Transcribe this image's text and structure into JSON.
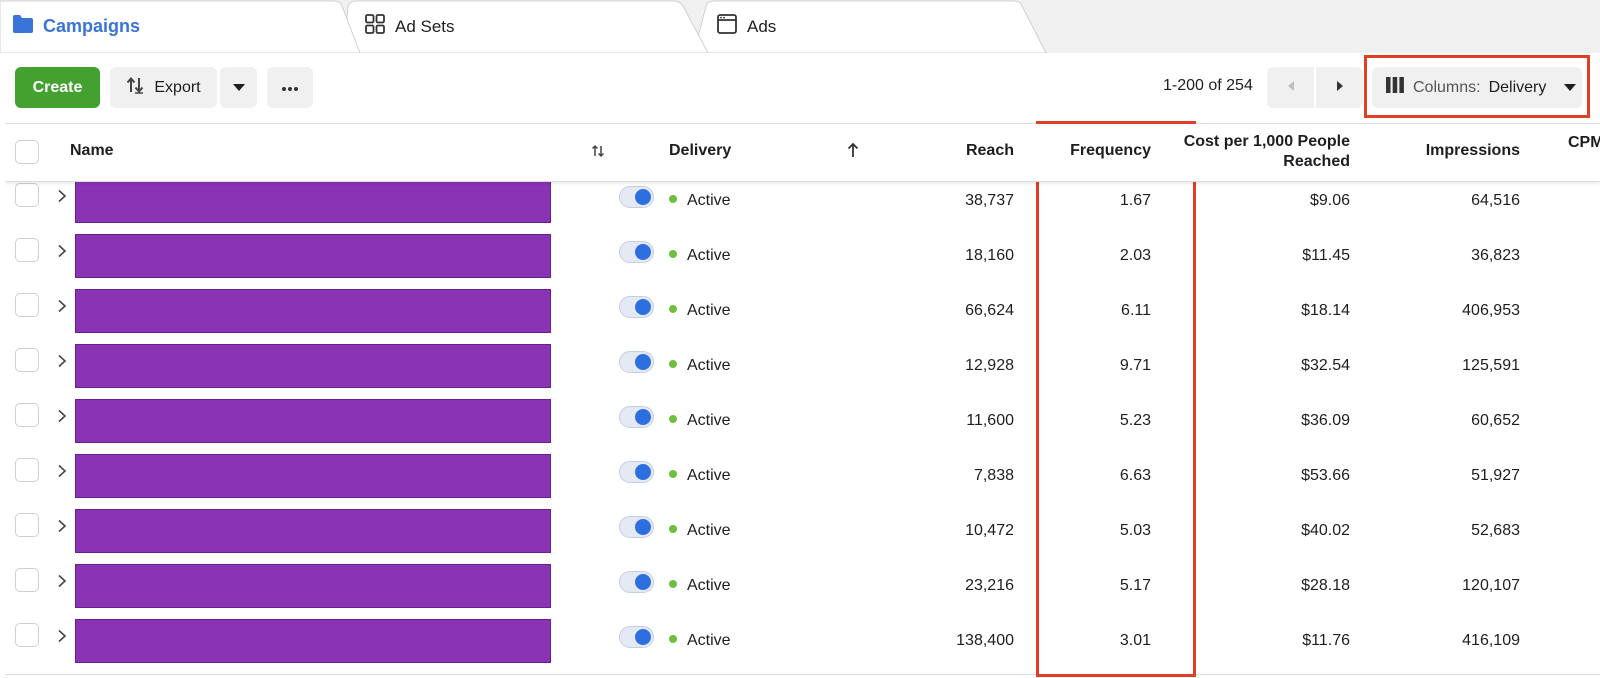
{
  "tabs": {
    "campaigns": "Campaigns",
    "adsets": "Ad Sets",
    "ads": "Ads"
  },
  "toolbar": {
    "create": "Create",
    "export": "Export",
    "pager": "1-200 of 254",
    "columns_label": "Columns:",
    "columns_value": "Delivery"
  },
  "columns": {
    "name": "Name",
    "delivery": "Delivery",
    "reach": "Reach",
    "frequency": "Frequency",
    "cost_per_1000": "Cost per 1,000 People Reached",
    "impressions": "Impressions",
    "cpm": "CPM"
  },
  "rows": [
    {
      "status": "Active",
      "reach": "38,737",
      "frequency": "1.67",
      "cost": "$9.06",
      "impressions": "64,516"
    },
    {
      "status": "Active",
      "reach": "18,160",
      "frequency": "2.03",
      "cost": "$11.45",
      "impressions": "36,823"
    },
    {
      "status": "Active",
      "reach": "66,624",
      "frequency": "6.11",
      "cost": "$18.14",
      "impressions": "406,953"
    },
    {
      "status": "Active",
      "reach": "12,928",
      "frequency": "9.71",
      "cost": "$32.54",
      "impressions": "125,591"
    },
    {
      "status": "Active",
      "reach": "11,600",
      "frequency": "5.23",
      "cost": "$36.09",
      "impressions": "60,652"
    },
    {
      "status": "Active",
      "reach": "7,838",
      "frequency": "6.63",
      "cost": "$53.66",
      "impressions": "51,927"
    },
    {
      "status": "Active",
      "reach": "10,472",
      "frequency": "5.03",
      "cost": "$40.02",
      "impressions": "52,683"
    },
    {
      "status": "Active",
      "reach": "23,216",
      "frequency": "5.17",
      "cost": "$28.18",
      "impressions": "120,107"
    },
    {
      "status": "Active",
      "reach": "138,400",
      "frequency": "3.01",
      "cost": "$11.76",
      "impressions": "416,109"
    }
  ],
  "colors": {
    "accent": "#3b74d8",
    "create_green": "#42a12f",
    "name_redaction": "#8b33b5",
    "highlight": "#e03e26",
    "active_dot": "#6fbf3f"
  },
  "icons": {
    "campaigns": "folder-icon",
    "adsets": "grid-icon",
    "ads": "window-icon",
    "export": "export-arrows-icon",
    "columns": "columns-icon",
    "sort": "sort-icon",
    "sort_asc": "arrow-up-icon"
  }
}
